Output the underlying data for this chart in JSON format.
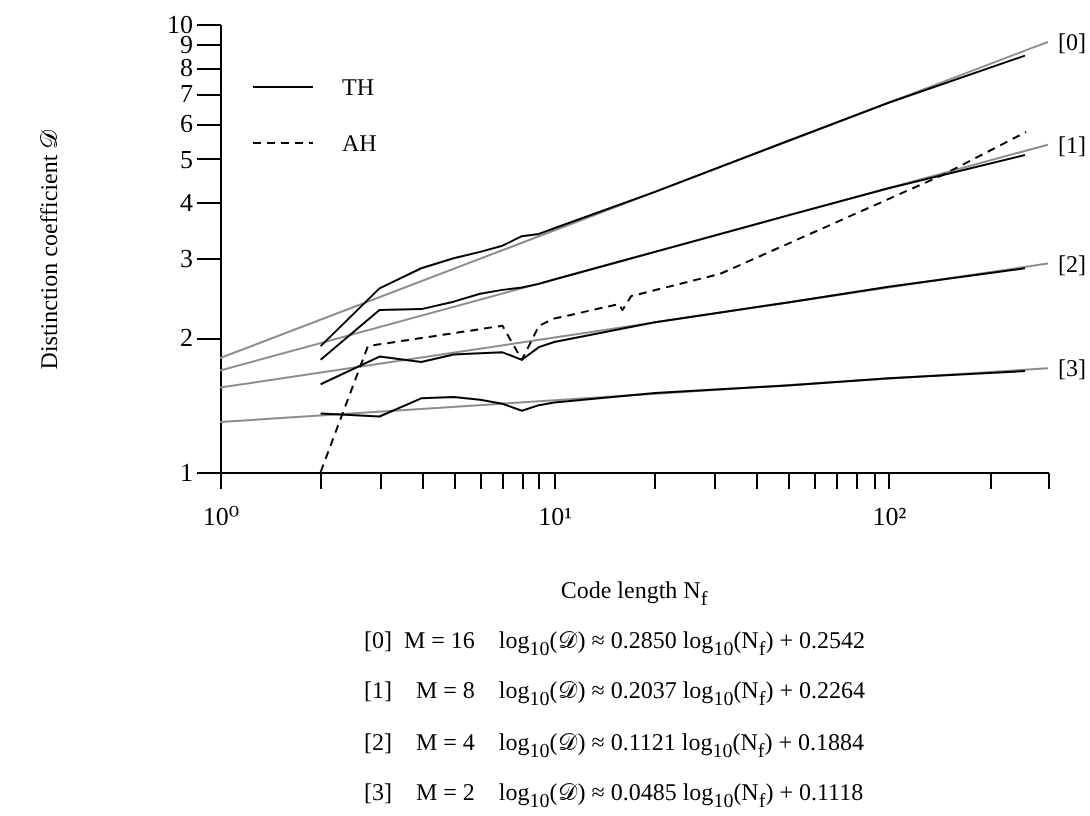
{
  "chart_data": {
    "type": "line",
    "xlabel": "Code length N$_{f}$",
    "ylabel": "Distinction coefficient 𝒟",
    "log": "xy",
    "xlim": [
      1,
      300
    ],
    "ylim": [
      1,
      10
    ],
    "xticks": [
      {
        "value": 1,
        "label": "10⁰"
      },
      {
        "value": 2,
        "label": null
      },
      {
        "value": 3,
        "label": null
      },
      {
        "value": 4,
        "label": null
      },
      {
        "value": 5,
        "label": null
      },
      {
        "value": 6,
        "label": null
      },
      {
        "value": 7,
        "label": null
      },
      {
        "value": 8,
        "label": null
      },
      {
        "value": 9,
        "label": null
      },
      {
        "value": 10,
        "label": "10¹"
      },
      {
        "value": 20,
        "label": null
      },
      {
        "value": 30,
        "label": null
      },
      {
        "value": 40,
        "label": null
      },
      {
        "value": 50,
        "label": null
      },
      {
        "value": 60,
        "label": null
      },
      {
        "value": 70,
        "label": null
      },
      {
        "value": 80,
        "label": null
      },
      {
        "value": 90,
        "label": null
      },
      {
        "value": 100,
        "label": "10²"
      },
      {
        "value": 200,
        "label": null
      },
      {
        "value": 300,
        "label": null
      }
    ],
    "yticks": [
      1,
      2,
      3,
      4,
      5,
      6,
      7,
      8,
      9,
      10
    ],
    "legend": "top left",
    "grid": false,
    "series": [
      {
        "name": "[0]",
        "color": "#8c8c8c",
        "x": [
          1,
          300
        ],
        "values": [
          1.796,
          9.125
        ]
      },
      {
        "name": "[1]",
        "color": "#8c8c8c",
        "x": [
          1,
          300
        ],
        "values": [
          1.684,
          5.38
        ]
      },
      {
        "name": "[2]",
        "color": "#8c8c8c",
        "x": [
          1,
          300
        ],
        "values": [
          1.543,
          2.92
        ]
      },
      {
        "name": "[3]",
        "color": "#8c8c8c",
        "x": [
          1,
          300
        ],
        "values": [
          1.293,
          1.705
        ]
      },
      {
        "name": "TH",
        "color": "#000000",
        "line_style": "solid",
        "x": [
          2,
          3,
          4,
          5,
          6,
          7,
          8,
          9,
          10,
          20,
          50,
          100,
          256
        ],
        "values": [
          1.91,
          2.57,
          2.85,
          3.0,
          3.1,
          3.2,
          3.36,
          3.4,
          3.5,
          4.22,
          5.48,
          6.67,
          8.5
        ]
      },
      {
        "color": "#000000",
        "x": [
          2,
          3,
          4,
          5,
          6,
          7,
          8,
          9,
          10,
          20,
          50,
          100,
          256
        ],
        "values": [
          1.78,
          2.3,
          2.31,
          2.4,
          2.5,
          2.55,
          2.58,
          2.63,
          2.69,
          3.1,
          3.74,
          4.3,
          5.1
        ]
      },
      {
        "color": "#000000",
        "x": [
          2,
          3,
          4,
          5,
          6,
          7,
          8,
          9,
          10,
          20,
          50,
          100,
          256
        ],
        "values": [
          1.57,
          1.81,
          1.76,
          1.83,
          1.84,
          1.85,
          1.78,
          1.9,
          1.95,
          2.16,
          2.39,
          2.59,
          2.85
        ]
      },
      {
        "color": "#000000",
        "x": [
          2,
          3,
          4,
          5,
          6,
          7,
          8,
          9,
          10,
          20,
          50,
          100,
          256
        ],
        "values": [
          1.35,
          1.33,
          1.46,
          1.47,
          1.45,
          1.42,
          1.37,
          1.41,
          1.43,
          1.5,
          1.56,
          1.62,
          1.68
        ]
      },
      {
        "name": "AH",
        "color": "#000000",
        "line_style": "dashed",
        "x": [
          2,
          2.77,
          7,
          8,
          9,
          10,
          15.6,
          16,
          17,
          31.4,
          145,
          258
        ],
        "values": [
          1,
          1.91,
          2.12,
          1.78,
          2.12,
          2.2,
          2.37,
          2.3,
          2.47,
          2.77,
          4.6,
          5.74
        ]
      }
    ],
    "annotations": [
      "[0]  M = 16    log$_{10}$(𝒟) ≈ 0.2850 log$_{10}$(N$_{f}$) + 0.2542",
      "[1]    M = 8    log$_{10}$(𝒟) ≈ 0.2037 log$_{10}$(N$_{f}$) + 0.2264",
      "[2]    M = 4    log$_{10}$(𝒟) ≈ 0.1121 log$_{10}$(N$_{f}$) + 0.1884",
      "[3]    M = 2    log$_{10}$(𝒟) ≈ 0.0485 log$_{10}$(N$_{f}$) + 0.1118"
    ]
  }
}
